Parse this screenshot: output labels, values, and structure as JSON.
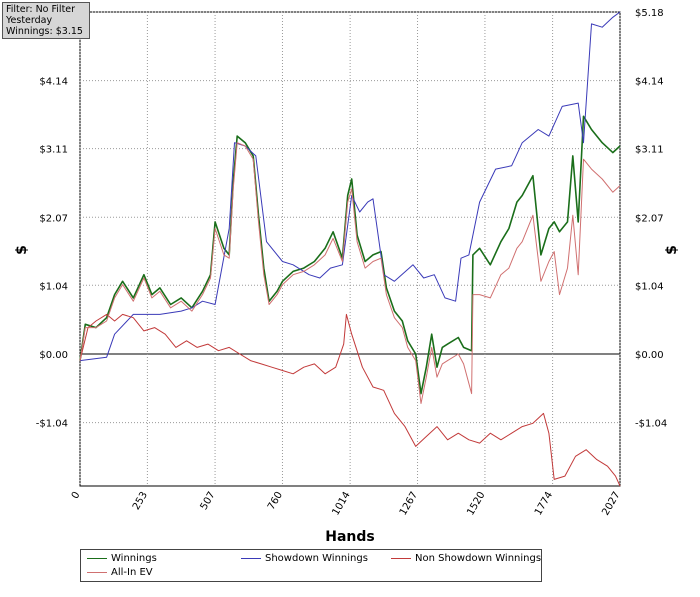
{
  "filter_box": {
    "line1": "Filter: No Filter",
    "line2": "Yesterday",
    "line3": "Winnings: $3.15"
  },
  "legend": [
    {
      "label": "Winnings",
      "color": "#1a6e1a"
    },
    {
      "label": "Showdown Winnings",
      "color": "#3a3ab8"
    },
    {
      "label": "Non Showdown Winnings",
      "color": "#c23a3a"
    },
    {
      "label": "All-In EV",
      "color": "#d07070"
    }
  ],
  "chart_data": {
    "type": "line",
    "xlabel": "Hands",
    "ylabel": "$",
    "xlim": [
      0,
      2027
    ],
    "ylim": [
      -2.0,
      5.18
    ],
    "x_ticks": [
      0,
      253,
      507,
      760,
      1014,
      1267,
      1520,
      1774,
      2027
    ],
    "y_ticks": [
      {
        "value": 5.18,
        "label": "$5.18"
      },
      {
        "value": 4.14,
        "label": "$4.14"
      },
      {
        "value": 3.11,
        "label": "$3.11"
      },
      {
        "value": 2.07,
        "label": "$2.07"
      },
      {
        "value": 1.04,
        "label": "$1.04"
      },
      {
        "value": 0.0,
        "label": "$0.00"
      },
      {
        "value": -1.04,
        "label": "-$1.04"
      }
    ],
    "grid": true,
    "legend_position": "bottom",
    "series": [
      {
        "name": "Winnings",
        "color": "#1a6e1a",
        "points": [
          [
            0,
            -0.1
          ],
          [
            20,
            0.45
          ],
          [
            60,
            0.4
          ],
          [
            100,
            0.55
          ],
          [
            130,
            0.9
          ],
          [
            160,
            1.1
          ],
          [
            200,
            0.85
          ],
          [
            240,
            1.2
          ],
          [
            270,
            0.9
          ],
          [
            300,
            1.0
          ],
          [
            340,
            0.75
          ],
          [
            380,
            0.85
          ],
          [
            420,
            0.7
          ],
          [
            460,
            0.95
          ],
          [
            490,
            1.2
          ],
          [
            507,
            2.0
          ],
          [
            540,
            1.6
          ],
          [
            560,
            1.5
          ],
          [
            575,
            2.6
          ],
          [
            590,
            3.3
          ],
          [
            620,
            3.2
          ],
          [
            650,
            3.0
          ],
          [
            670,
            2.1
          ],
          [
            690,
            1.3
          ],
          [
            710,
            0.8
          ],
          [
            740,
            0.95
          ],
          [
            760,
            1.1
          ],
          [
            800,
            1.25
          ],
          [
            840,
            1.3
          ],
          [
            880,
            1.4
          ],
          [
            920,
            1.6
          ],
          [
            950,
            1.85
          ],
          [
            985,
            1.45
          ],
          [
            1005,
            2.4
          ],
          [
            1020,
            2.65
          ],
          [
            1040,
            1.8
          ],
          [
            1070,
            1.4
          ],
          [
            1100,
            1.5
          ],
          [
            1130,
            1.55
          ],
          [
            1150,
            1.0
          ],
          [
            1180,
            0.65
          ],
          [
            1210,
            0.5
          ],
          [
            1230,
            0.2
          ],
          [
            1260,
            0.0
          ],
          [
            1280,
            -0.6
          ],
          [
            1300,
            -0.2
          ],
          [
            1320,
            0.3
          ],
          [
            1340,
            -0.2
          ],
          [
            1360,
            0.1
          ],
          [
            1380,
            0.15
          ],
          [
            1420,
            0.25
          ],
          [
            1440,
            0.1
          ],
          [
            1470,
            0.05
          ],
          [
            1475,
            1.5
          ],
          [
            1500,
            1.6
          ],
          [
            1540,
            1.35
          ],
          [
            1580,
            1.7
          ],
          [
            1610,
            1.9
          ],
          [
            1640,
            2.3
          ],
          [
            1660,
            2.4
          ],
          [
            1700,
            2.7
          ],
          [
            1730,
            1.5
          ],
          [
            1760,
            1.9
          ],
          [
            1780,
            2.0
          ],
          [
            1800,
            1.85
          ],
          [
            1830,
            2.0
          ],
          [
            1850,
            3.0
          ],
          [
            1870,
            2.0
          ],
          [
            1890,
            3.6
          ],
          [
            1920,
            3.4
          ],
          [
            1960,
            3.2
          ],
          [
            2000,
            3.05
          ],
          [
            2027,
            3.15
          ]
        ]
      },
      {
        "name": "Showdown Winnings",
        "color": "#3a3ab8",
        "points": [
          [
            0,
            -0.1
          ],
          [
            100,
            -0.05
          ],
          [
            130,
            0.3
          ],
          [
            200,
            0.6
          ],
          [
            300,
            0.6
          ],
          [
            380,
            0.65
          ],
          [
            420,
            0.7
          ],
          [
            460,
            0.8
          ],
          [
            507,
            0.75
          ],
          [
            560,
            1.9
          ],
          [
            580,
            3.2
          ],
          [
            620,
            3.15
          ],
          [
            660,
            3.0
          ],
          [
            700,
            1.7
          ],
          [
            760,
            1.4
          ],
          [
            800,
            1.35
          ],
          [
            860,
            1.2
          ],
          [
            900,
            1.15
          ],
          [
            940,
            1.3
          ],
          [
            985,
            1.35
          ],
          [
            1020,
            2.4
          ],
          [
            1050,
            2.15
          ],
          [
            1080,
            2.3
          ],
          [
            1100,
            2.35
          ],
          [
            1140,
            1.2
          ],
          [
            1180,
            1.1
          ],
          [
            1250,
            1.35
          ],
          [
            1290,
            1.15
          ],
          [
            1330,
            1.2
          ],
          [
            1370,
            0.85
          ],
          [
            1410,
            0.8
          ],
          [
            1430,
            1.45
          ],
          [
            1460,
            1.5
          ],
          [
            1500,
            2.3
          ],
          [
            1560,
            2.8
          ],
          [
            1620,
            2.85
          ],
          [
            1660,
            3.2
          ],
          [
            1720,
            3.4
          ],
          [
            1760,
            3.3
          ],
          [
            1810,
            3.75
          ],
          [
            1870,
            3.8
          ],
          [
            1890,
            3.2
          ],
          [
            1920,
            5.0
          ],
          [
            1960,
            4.95
          ],
          [
            2000,
            5.1
          ],
          [
            2027,
            5.18
          ]
        ]
      },
      {
        "name": "Non Showdown Winnings",
        "color": "#c23a3a",
        "points": [
          [
            0,
            -0.1
          ],
          [
            30,
            0.4
          ],
          [
            60,
            0.5
          ],
          [
            100,
            0.6
          ],
          [
            130,
            0.5
          ],
          [
            160,
            0.6
          ],
          [
            200,
            0.55
          ],
          [
            240,
            0.35
          ],
          [
            280,
            0.4
          ],
          [
            320,
            0.3
          ],
          [
            360,
            0.1
          ],
          [
            400,
            0.2
          ],
          [
            440,
            0.1
          ],
          [
            480,
            0.15
          ],
          [
            520,
            0.05
          ],
          [
            560,
            0.1
          ],
          [
            600,
            0.0
          ],
          [
            640,
            -0.1
          ],
          [
            680,
            -0.15
          ],
          [
            720,
            -0.2
          ],
          [
            760,
            -0.25
          ],
          [
            800,
            -0.3
          ],
          [
            840,
            -0.2
          ],
          [
            880,
            -0.15
          ],
          [
            920,
            -0.3
          ],
          [
            960,
            -0.2
          ],
          [
            990,
            0.15
          ],
          [
            1000,
            0.6
          ],
          [
            1020,
            0.3
          ],
          [
            1060,
            -0.2
          ],
          [
            1100,
            -0.5
          ],
          [
            1140,
            -0.55
          ],
          [
            1180,
            -0.9
          ],
          [
            1220,
            -1.1
          ],
          [
            1260,
            -1.4
          ],
          [
            1300,
            -1.25
          ],
          [
            1340,
            -1.1
          ],
          [
            1380,
            -1.3
          ],
          [
            1420,
            -1.2
          ],
          [
            1460,
            -1.3
          ],
          [
            1500,
            -1.35
          ],
          [
            1540,
            -1.2
          ],
          [
            1580,
            -1.3
          ],
          [
            1620,
            -1.2
          ],
          [
            1660,
            -1.1
          ],
          [
            1700,
            -1.05
          ],
          [
            1740,
            -0.9
          ],
          [
            1760,
            -1.2
          ],
          [
            1780,
            -1.9
          ],
          [
            1820,
            -1.85
          ],
          [
            1860,
            -1.55
          ],
          [
            1900,
            -1.45
          ],
          [
            1940,
            -1.6
          ],
          [
            1980,
            -1.7
          ],
          [
            2010,
            -1.85
          ],
          [
            2027,
            -2.0
          ]
        ]
      },
      {
        "name": "All-In EV",
        "color": "#d07070",
        "points": [
          [
            0,
            -0.1
          ],
          [
            20,
            0.4
          ],
          [
            60,
            0.4
          ],
          [
            100,
            0.5
          ],
          [
            130,
            0.85
          ],
          [
            160,
            1.05
          ],
          [
            200,
            0.8
          ],
          [
            240,
            1.15
          ],
          [
            270,
            0.85
          ],
          [
            300,
            0.95
          ],
          [
            340,
            0.7
          ],
          [
            380,
            0.8
          ],
          [
            420,
            0.65
          ],
          [
            460,
            0.9
          ],
          [
            490,
            1.15
          ],
          [
            507,
            1.9
          ],
          [
            540,
            1.5
          ],
          [
            560,
            1.45
          ],
          [
            575,
            2.5
          ],
          [
            590,
            3.2
          ],
          [
            620,
            3.15
          ],
          [
            650,
            2.95
          ],
          [
            670,
            2.0
          ],
          [
            690,
            1.2
          ],
          [
            710,
            0.75
          ],
          [
            740,
            0.9
          ],
          [
            760,
            1.05
          ],
          [
            800,
            1.2
          ],
          [
            840,
            1.25
          ],
          [
            880,
            1.35
          ],
          [
            920,
            1.5
          ],
          [
            950,
            1.75
          ],
          [
            985,
            1.4
          ],
          [
            1005,
            2.3
          ],
          [
            1020,
            2.5
          ],
          [
            1040,
            1.7
          ],
          [
            1070,
            1.3
          ],
          [
            1100,
            1.4
          ],
          [
            1130,
            1.45
          ],
          [
            1150,
            0.9
          ],
          [
            1180,
            0.55
          ],
          [
            1210,
            0.4
          ],
          [
            1230,
            0.1
          ],
          [
            1260,
            -0.1
          ],
          [
            1280,
            -0.75
          ],
          [
            1300,
            -0.35
          ],
          [
            1320,
            0.1
          ],
          [
            1340,
            -0.35
          ],
          [
            1360,
            -0.15
          ],
          [
            1380,
            -0.1
          ],
          [
            1420,
            0.0
          ],
          [
            1440,
            -0.15
          ],
          [
            1470,
            -0.6
          ],
          [
            1475,
            0.9
          ],
          [
            1500,
            0.9
          ],
          [
            1540,
            0.85
          ],
          [
            1580,
            1.2
          ],
          [
            1610,
            1.3
          ],
          [
            1640,
            1.6
          ],
          [
            1660,
            1.7
          ],
          [
            1700,
            2.1
          ],
          [
            1730,
            1.1
          ],
          [
            1760,
            1.4
          ],
          [
            1780,
            1.55
          ],
          [
            1800,
            0.9
          ],
          [
            1830,
            1.3
          ],
          [
            1850,
            2.1
          ],
          [
            1870,
            1.2
          ],
          [
            1890,
            2.95
          ],
          [
            1920,
            2.8
          ],
          [
            1960,
            2.65
          ],
          [
            2000,
            2.45
          ],
          [
            2027,
            2.55
          ]
        ]
      }
    ]
  }
}
